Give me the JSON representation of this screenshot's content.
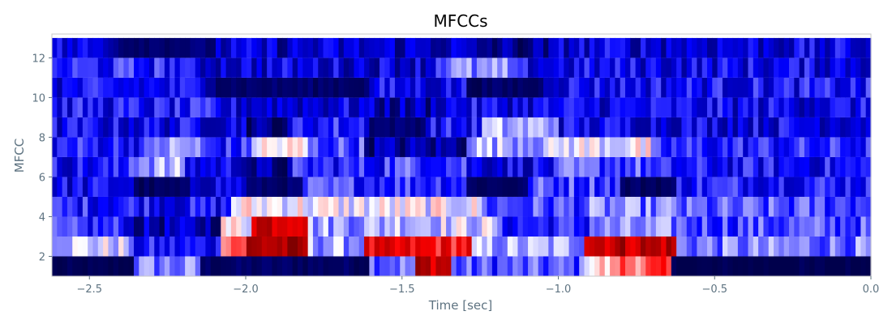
{
  "chart_data": {
    "type": "heatmap",
    "title": "MFCCs",
    "xlabel": "Time [sec]",
    "ylabel": "MFCC",
    "xlim": [
      -2.62,
      0.0
    ],
    "ylim": [
      1,
      13.2
    ],
    "x_ticks": [
      {
        "value": -2.5,
        "label": "−2.5"
      },
      {
        "value": -2.0,
        "label": "−2.0"
      },
      {
        "value": -1.5,
        "label": "−1.5"
      },
      {
        "value": -1.0,
        "label": "−1.0"
      },
      {
        "value": -0.5,
        "label": "−0.5"
      },
      {
        "value": 0.0,
        "label": "0.0"
      }
    ],
    "y_ticks": [
      {
        "value": 2,
        "label": "2"
      },
      {
        "value": 4,
        "label": "4"
      },
      {
        "value": 6,
        "label": "6"
      },
      {
        "value": 8,
        "label": "8"
      },
      {
        "value": 10,
        "label": "10"
      },
      {
        "value": 12,
        "label": "12"
      }
    ],
    "colormap": "seismic",
    "rows": 12,
    "row_range": [
      1,
      13
    ],
    "columns": 160,
    "regions": [
      {
        "row": 1,
        "x": [
          -2.62,
          -2.36
        ],
        "value": 0.0
      },
      {
        "row": 1,
        "x": [
          -2.36,
          -2.14
        ],
        "value": 0.35
      },
      {
        "row": 1,
        "x": [
          -2.14,
          -1.6
        ],
        "value": 0.03
      },
      {
        "row": 1,
        "x": [
          -1.6,
          -1.45
        ],
        "value": 0.35
      },
      {
        "row": 1,
        "x": [
          -1.45,
          -1.35
        ],
        "value": 0.9
      },
      {
        "row": 1,
        "x": [
          -1.35,
          -0.92
        ],
        "value": 0.3
      },
      {
        "row": 1,
        "x": [
          -0.92,
          -0.82
        ],
        "value": 0.55
      },
      {
        "row": 1,
        "x": [
          -0.82,
          -0.64
        ],
        "value": 0.68
      },
      {
        "row": 1,
        "x": [
          -0.64,
          0.0
        ],
        "value": 0.0
      },
      {
        "row": 2,
        "x": [
          -2.62,
          -2.38
        ],
        "value": 0.45
      },
      {
        "row": 2,
        "x": [
          -2.38,
          -2.08
        ],
        "value": 0.22
      },
      {
        "row": 2,
        "x": [
          -2.08,
          -2.0
        ],
        "value": 0.72
      },
      {
        "row": 2,
        "x": [
          -2.0,
          -1.8
        ],
        "value": 0.92
      },
      {
        "row": 2,
        "x": [
          -1.8,
          -1.62
        ],
        "value": 0.4
      },
      {
        "row": 2,
        "x": [
          -1.62,
          -1.28
        ],
        "value": 0.78
      },
      {
        "row": 2,
        "x": [
          -1.28,
          -0.92
        ],
        "value": 0.4
      },
      {
        "row": 2,
        "x": [
          -0.92,
          -0.62
        ],
        "value": 0.9
      },
      {
        "row": 2,
        "x": [
          -0.62,
          0.0
        ],
        "value": 0.35
      },
      {
        "row": 3,
        "x": [
          -2.62,
          -2.38
        ],
        "value": 0.25
      },
      {
        "row": 3,
        "x": [
          -2.38,
          -2.08
        ],
        "value": 0.12
      },
      {
        "row": 3,
        "x": [
          -2.08,
          -1.98
        ],
        "value": 0.5
      },
      {
        "row": 3,
        "x": [
          -1.98,
          -1.8
        ],
        "value": 0.9
      },
      {
        "row": 3,
        "x": [
          -1.8,
          -1.55
        ],
        "value": 0.4
      },
      {
        "row": 3,
        "x": [
          -1.55,
          -1.2
        ],
        "value": 0.45
      },
      {
        "row": 3,
        "x": [
          -1.2,
          -0.9
        ],
        "value": 0.25
      },
      {
        "row": 3,
        "x": [
          -0.9,
          -0.6
        ],
        "value": 0.35
      },
      {
        "row": 3,
        "x": [
          -0.6,
          0.0
        ],
        "value": 0.3
      },
      {
        "row": 4,
        "x": [
          -2.62,
          -2.3
        ],
        "value": 0.25
      },
      {
        "row": 4,
        "x": [
          -2.3,
          -2.05
        ],
        "value": 0.22
      },
      {
        "row": 4,
        "x": [
          -2.05,
          -1.8
        ],
        "value": 0.5
      },
      {
        "row": 4,
        "x": [
          -1.8,
          -1.25
        ],
        "value": 0.48
      },
      {
        "row": 4,
        "x": [
          -1.25,
          -0.9
        ],
        "value": 0.3
      },
      {
        "row": 4,
        "x": [
          -0.9,
          -0.6
        ],
        "value": 0.35
      },
      {
        "row": 4,
        "x": [
          -0.6,
          0.0
        ],
        "value": 0.3
      },
      {
        "row": 5,
        "x": [
          -2.62,
          -2.36
        ],
        "value": 0.2
      },
      {
        "row": 5,
        "x": [
          -2.36,
          -2.18
        ],
        "value": 0.02
      },
      {
        "row": 5,
        "x": [
          -2.18,
          -2.0
        ],
        "value": 0.2
      },
      {
        "row": 5,
        "x": [
          -2.0,
          -1.82
        ],
        "value": 0.04
      },
      {
        "row": 5,
        "x": [
          -1.82,
          -1.3
        ],
        "value": 0.28
      },
      {
        "row": 5,
        "x": [
          -1.3,
          -1.1
        ],
        "value": 0.03
      },
      {
        "row": 5,
        "x": [
          -1.1,
          -0.8
        ],
        "value": 0.3
      },
      {
        "row": 5,
        "x": [
          -0.8,
          -0.63
        ],
        "value": 0.03
      },
      {
        "row": 5,
        "x": [
          -0.63,
          0.0
        ],
        "value": 0.25
      },
      {
        "row": 6,
        "x": [
          -2.62,
          -2.38
        ],
        "value": 0.22
      },
      {
        "row": 6,
        "x": [
          -2.38,
          -2.2
        ],
        "value": 0.4
      },
      {
        "row": 6,
        "x": [
          -2.2,
          -2.0
        ],
        "value": 0.2
      },
      {
        "row": 6,
        "x": [
          -2.0,
          -1.85
        ],
        "value": 0.08
      },
      {
        "row": 6,
        "x": [
          -1.85,
          -1.55
        ],
        "value": 0.25
      },
      {
        "row": 6,
        "x": [
          -1.55,
          -1.3
        ],
        "value": 0.3
      },
      {
        "row": 6,
        "x": [
          -1.3,
          -1.0
        ],
        "value": 0.2
      },
      {
        "row": 6,
        "x": [
          -1.0,
          -0.7
        ],
        "value": 0.3
      },
      {
        "row": 6,
        "x": [
          -0.7,
          0.0
        ],
        "value": 0.22
      },
      {
        "row": 7,
        "x": [
          -2.62,
          -2.3
        ],
        "value": 0.25
      },
      {
        "row": 7,
        "x": [
          -2.3,
          -2.15
        ],
        "value": 0.38
      },
      {
        "row": 7,
        "x": [
          -2.15,
          -1.98
        ],
        "value": 0.25
      },
      {
        "row": 7,
        "x": [
          -1.98,
          -1.8
        ],
        "value": 0.5
      },
      {
        "row": 7,
        "x": [
          -1.8,
          -1.62
        ],
        "value": 0.3
      },
      {
        "row": 7,
        "x": [
          -1.62,
          -1.3
        ],
        "value": 0.1
      },
      {
        "row": 7,
        "x": [
          -1.3,
          -1.0
        ],
        "value": 0.42
      },
      {
        "row": 7,
        "x": [
          -1.0,
          -0.7
        ],
        "value": 0.48
      },
      {
        "row": 7,
        "x": [
          -0.7,
          0.0
        ],
        "value": 0.25
      },
      {
        "row": 8,
        "x": [
          -2.62,
          -2.0
        ],
        "value": 0.2
      },
      {
        "row": 8,
        "x": [
          -2.0,
          -1.85
        ],
        "value": 0.06
      },
      {
        "row": 8,
        "x": [
          -1.85,
          -1.6
        ],
        "value": 0.25
      },
      {
        "row": 8,
        "x": [
          -1.6,
          -1.42
        ],
        "value": 0.05
      },
      {
        "row": 8,
        "x": [
          -1.42,
          -1.25
        ],
        "value": 0.22
      },
      {
        "row": 8,
        "x": [
          -1.25,
          -1.0
        ],
        "value": 0.4
      },
      {
        "row": 8,
        "x": [
          -1.0,
          0.0
        ],
        "value": 0.2
      },
      {
        "row": 9,
        "x": [
          -2.62,
          -2.1
        ],
        "value": 0.22
      },
      {
        "row": 9,
        "x": [
          -2.1,
          -1.6
        ],
        "value": 0.18
      },
      {
        "row": 9,
        "x": [
          -1.6,
          -1.4
        ],
        "value": 0.12
      },
      {
        "row": 9,
        "x": [
          -1.4,
          -1.0
        ],
        "value": 0.2
      },
      {
        "row": 9,
        "x": [
          -1.0,
          0.0
        ],
        "value": 0.2
      },
      {
        "row": 10,
        "x": [
          -2.62,
          -2.1
        ],
        "value": 0.2
      },
      {
        "row": 10,
        "x": [
          -2.1,
          -1.6
        ],
        "value": 0.04
      },
      {
        "row": 10,
        "x": [
          -1.6,
          -1.3
        ],
        "value": 0.2
      },
      {
        "row": 10,
        "x": [
          -1.3,
          -1.05
        ],
        "value": 0.03
      },
      {
        "row": 10,
        "x": [
          -1.05,
          0.0
        ],
        "value": 0.22
      },
      {
        "row": 11,
        "x": [
          -2.62,
          -2.2
        ],
        "value": 0.25
      },
      {
        "row": 11,
        "x": [
          -2.2,
          -1.4
        ],
        "value": 0.18
      },
      {
        "row": 11,
        "x": [
          -1.4,
          -1.15
        ],
        "value": 0.35
      },
      {
        "row": 11,
        "x": [
          -1.15,
          0.0
        ],
        "value": 0.2
      },
      {
        "row": 12,
        "x": [
          -2.62,
          -2.4
        ],
        "value": 0.18
      },
      {
        "row": 12,
        "x": [
          -2.4,
          -2.1
        ],
        "value": 0.05
      },
      {
        "row": 12,
        "x": [
          -2.1,
          -1.3
        ],
        "value": 0.15
      },
      {
        "row": 12,
        "x": [
          -1.3,
          -1.0
        ],
        "value": 0.08
      },
      {
        "row": 12,
        "x": [
          -1.0,
          0.0
        ],
        "value": 0.18
      }
    ]
  }
}
